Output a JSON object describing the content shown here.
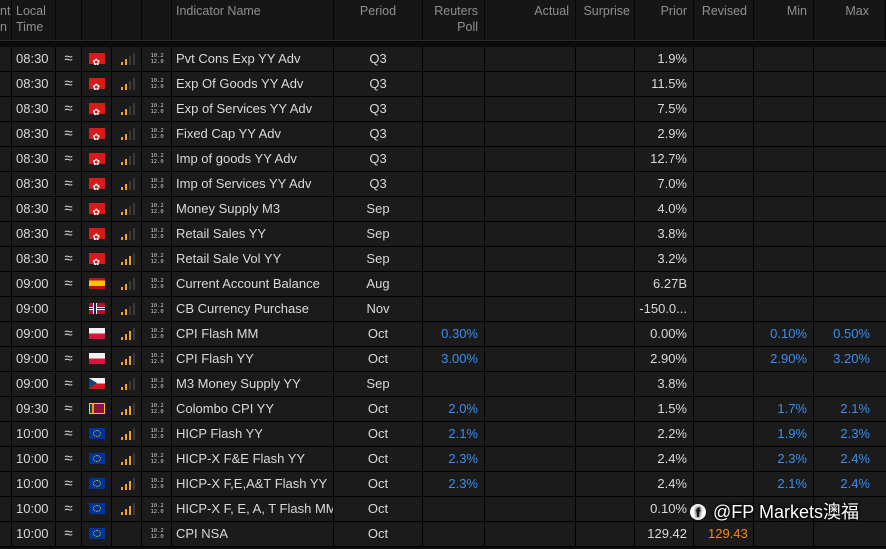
{
  "columns": [
    {
      "key": "c0",
      "label": "nt\nn"
    },
    {
      "key": "local_time",
      "label": "Local\nTime"
    },
    {
      "key": "c2",
      "label": ""
    },
    {
      "key": "c3",
      "label": ""
    },
    {
      "key": "c4",
      "label": ""
    },
    {
      "key": "c5",
      "label": ""
    },
    {
      "key": "indicator",
      "label": "Indicator Name"
    },
    {
      "key": "period",
      "label": "Period"
    },
    {
      "key": "poll",
      "label": "Reuters\nPoll"
    },
    {
      "key": "actual",
      "label": "Actual"
    },
    {
      "key": "surprise",
      "label": "Surprise"
    },
    {
      "key": "prior",
      "label": "Prior"
    },
    {
      "key": "revised",
      "label": "Revised"
    },
    {
      "key": "min",
      "label": "Min"
    },
    {
      "key": "max",
      "label": "Max"
    }
  ],
  "icons": {
    "wave": "≈",
    "history_top": "10.2",
    "history_bottom": "12.0"
  },
  "colors": {
    "poll_blue": "#3a8ff0",
    "revised_orange": "#f28a1e",
    "bar_orange": "#f2a12a",
    "bar_grey": "#3a3a3a"
  },
  "rows": [
    {
      "time": "08:30",
      "wave": true,
      "flag": "hk",
      "bars": 2,
      "indicator": "Pvt Cons Exp YY Adv",
      "period": "Q3",
      "poll": "",
      "actual": "",
      "surprise": "",
      "prior": "1.9%",
      "revised": "",
      "min": "",
      "max": ""
    },
    {
      "time": "08:30",
      "wave": true,
      "flag": "hk",
      "bars": 2,
      "indicator": "Exp Of Goods YY Adv",
      "period": "Q3",
      "poll": "",
      "actual": "",
      "surprise": "",
      "prior": "11.5%",
      "revised": "",
      "min": "",
      "max": ""
    },
    {
      "time": "08:30",
      "wave": true,
      "flag": "hk",
      "bars": 2,
      "indicator": "Exp of Services YY Adv",
      "period": "Q3",
      "poll": "",
      "actual": "",
      "surprise": "",
      "prior": "7.5%",
      "revised": "",
      "min": "",
      "max": ""
    },
    {
      "time": "08:30",
      "wave": true,
      "flag": "hk",
      "bars": 2,
      "indicator": "Fixed Cap YY Adv",
      "period": "Q3",
      "poll": "",
      "actual": "",
      "surprise": "",
      "prior": "2.9%",
      "revised": "",
      "min": "",
      "max": ""
    },
    {
      "time": "08:30",
      "wave": true,
      "flag": "hk",
      "bars": 2,
      "indicator": "Imp of goods YY Adv",
      "period": "Q3",
      "poll": "",
      "actual": "",
      "surprise": "",
      "prior": "12.7%",
      "revised": "",
      "min": "",
      "max": ""
    },
    {
      "time": "08:30",
      "wave": true,
      "flag": "hk",
      "bars": 2,
      "indicator": "Imp of Services YY Adv",
      "period": "Q3",
      "poll": "",
      "actual": "",
      "surprise": "",
      "prior": "7.0%",
      "revised": "",
      "min": "",
      "max": ""
    },
    {
      "time": "08:30",
      "wave": true,
      "flag": "hk",
      "bars": 2,
      "indicator": "Money Supply M3",
      "period": "Sep",
      "poll": "",
      "actual": "",
      "surprise": "",
      "prior": "4.0%",
      "revised": "",
      "min": "",
      "max": ""
    },
    {
      "time": "08:30",
      "wave": true,
      "flag": "hk",
      "bars": 2,
      "indicator": "Retail Sales YY",
      "period": "Sep",
      "poll": "",
      "actual": "",
      "surprise": "",
      "prior": "3.8%",
      "revised": "",
      "min": "",
      "max": ""
    },
    {
      "time": "08:30",
      "wave": true,
      "flag": "hk",
      "bars": 3,
      "indicator": "Retail Sale Vol YY",
      "period": "Sep",
      "poll": "",
      "actual": "",
      "surprise": "",
      "prior": "3.2%",
      "revised": "",
      "min": "",
      "max": ""
    },
    {
      "time": "09:00",
      "wave": true,
      "flag": "es",
      "bars": 2,
      "indicator": "Current Account Balance",
      "period": "Aug",
      "poll": "",
      "actual": "",
      "surprise": "",
      "prior": "6.27B",
      "revised": "",
      "min": "",
      "max": ""
    },
    {
      "time": "09:00",
      "wave": false,
      "flag": "no",
      "bars": 2,
      "indicator": "CB Currency Purchase",
      "period": "Nov",
      "poll": "",
      "actual": "",
      "surprise": "",
      "prior": "-150.0...",
      "revised": "",
      "min": "",
      "max": ""
    },
    {
      "time": "09:00",
      "wave": true,
      "flag": "pl",
      "bars": 3,
      "indicator": "CPI Flash MM",
      "period": "Oct",
      "poll": "0.30%",
      "actual": "",
      "surprise": "",
      "prior": "0.00%",
      "revised": "",
      "min": "0.10%",
      "max": "0.50%"
    },
    {
      "time": "09:00",
      "wave": true,
      "flag": "pl",
      "bars": 3,
      "indicator": "CPI Flash YY",
      "period": "Oct",
      "poll": "3.00%",
      "actual": "",
      "surprise": "",
      "prior": "2.90%",
      "revised": "",
      "min": "2.90%",
      "max": "3.20%"
    },
    {
      "time": "09:00",
      "wave": true,
      "flag": "cz",
      "bars": 2,
      "indicator": "M3 Money Supply YY",
      "period": "Sep",
      "poll": "",
      "actual": "",
      "surprise": "",
      "prior": "3.8%",
      "revised": "",
      "min": "",
      "max": ""
    },
    {
      "time": "09:30",
      "wave": true,
      "flag": "lk",
      "bars": 3,
      "indicator": "Colombo CPI YY",
      "period": "Oct",
      "poll": "2.0%",
      "actual": "",
      "surprise": "",
      "prior": "1.5%",
      "revised": "",
      "min": "1.7%",
      "max": "2.1%"
    },
    {
      "time": "10:00",
      "wave": true,
      "flag": "eu",
      "bars": 3,
      "indicator": "HICP Flash YY",
      "period": "Oct",
      "poll": "2.1%",
      "actual": "",
      "surprise": "",
      "prior": "2.2%",
      "revised": "",
      "min": "1.9%",
      "max": "2.3%"
    },
    {
      "time": "10:00",
      "wave": true,
      "flag": "eu",
      "bars": 3,
      "indicator": "HICP-X F&E Flash YY",
      "period": "Oct",
      "poll": "2.3%",
      "actual": "",
      "surprise": "",
      "prior": "2.4%",
      "revised": "",
      "min": "2.3%",
      "max": "2.4%"
    },
    {
      "time": "10:00",
      "wave": true,
      "flag": "eu",
      "bars": 3,
      "indicator": "HICP-X F,E,A&T Flash YY",
      "period": "Oct",
      "poll": "2.3%",
      "actual": "",
      "surprise": "",
      "prior": "2.4%",
      "revised": "",
      "min": "2.1%",
      "max": "2.4%"
    },
    {
      "time": "10:00",
      "wave": true,
      "flag": "eu",
      "bars": 3,
      "indicator": "HICP-X F, E, A, T Flash MM",
      "period": "Oct",
      "poll": "",
      "actual": "",
      "surprise": "",
      "prior": "0.10%",
      "revised": "",
      "min": "",
      "max": ""
    },
    {
      "time": "10:00",
      "wave": true,
      "flag": "eu",
      "bars": 0,
      "indicator": "CPI NSA",
      "period": "Oct",
      "poll": "",
      "actual": "",
      "surprise": "",
      "prior": "129.42",
      "revised": "129.43",
      "min": "",
      "max": ""
    }
  ],
  "watermark": {
    "icon": "f",
    "text": "@FP Markets澳福"
  }
}
